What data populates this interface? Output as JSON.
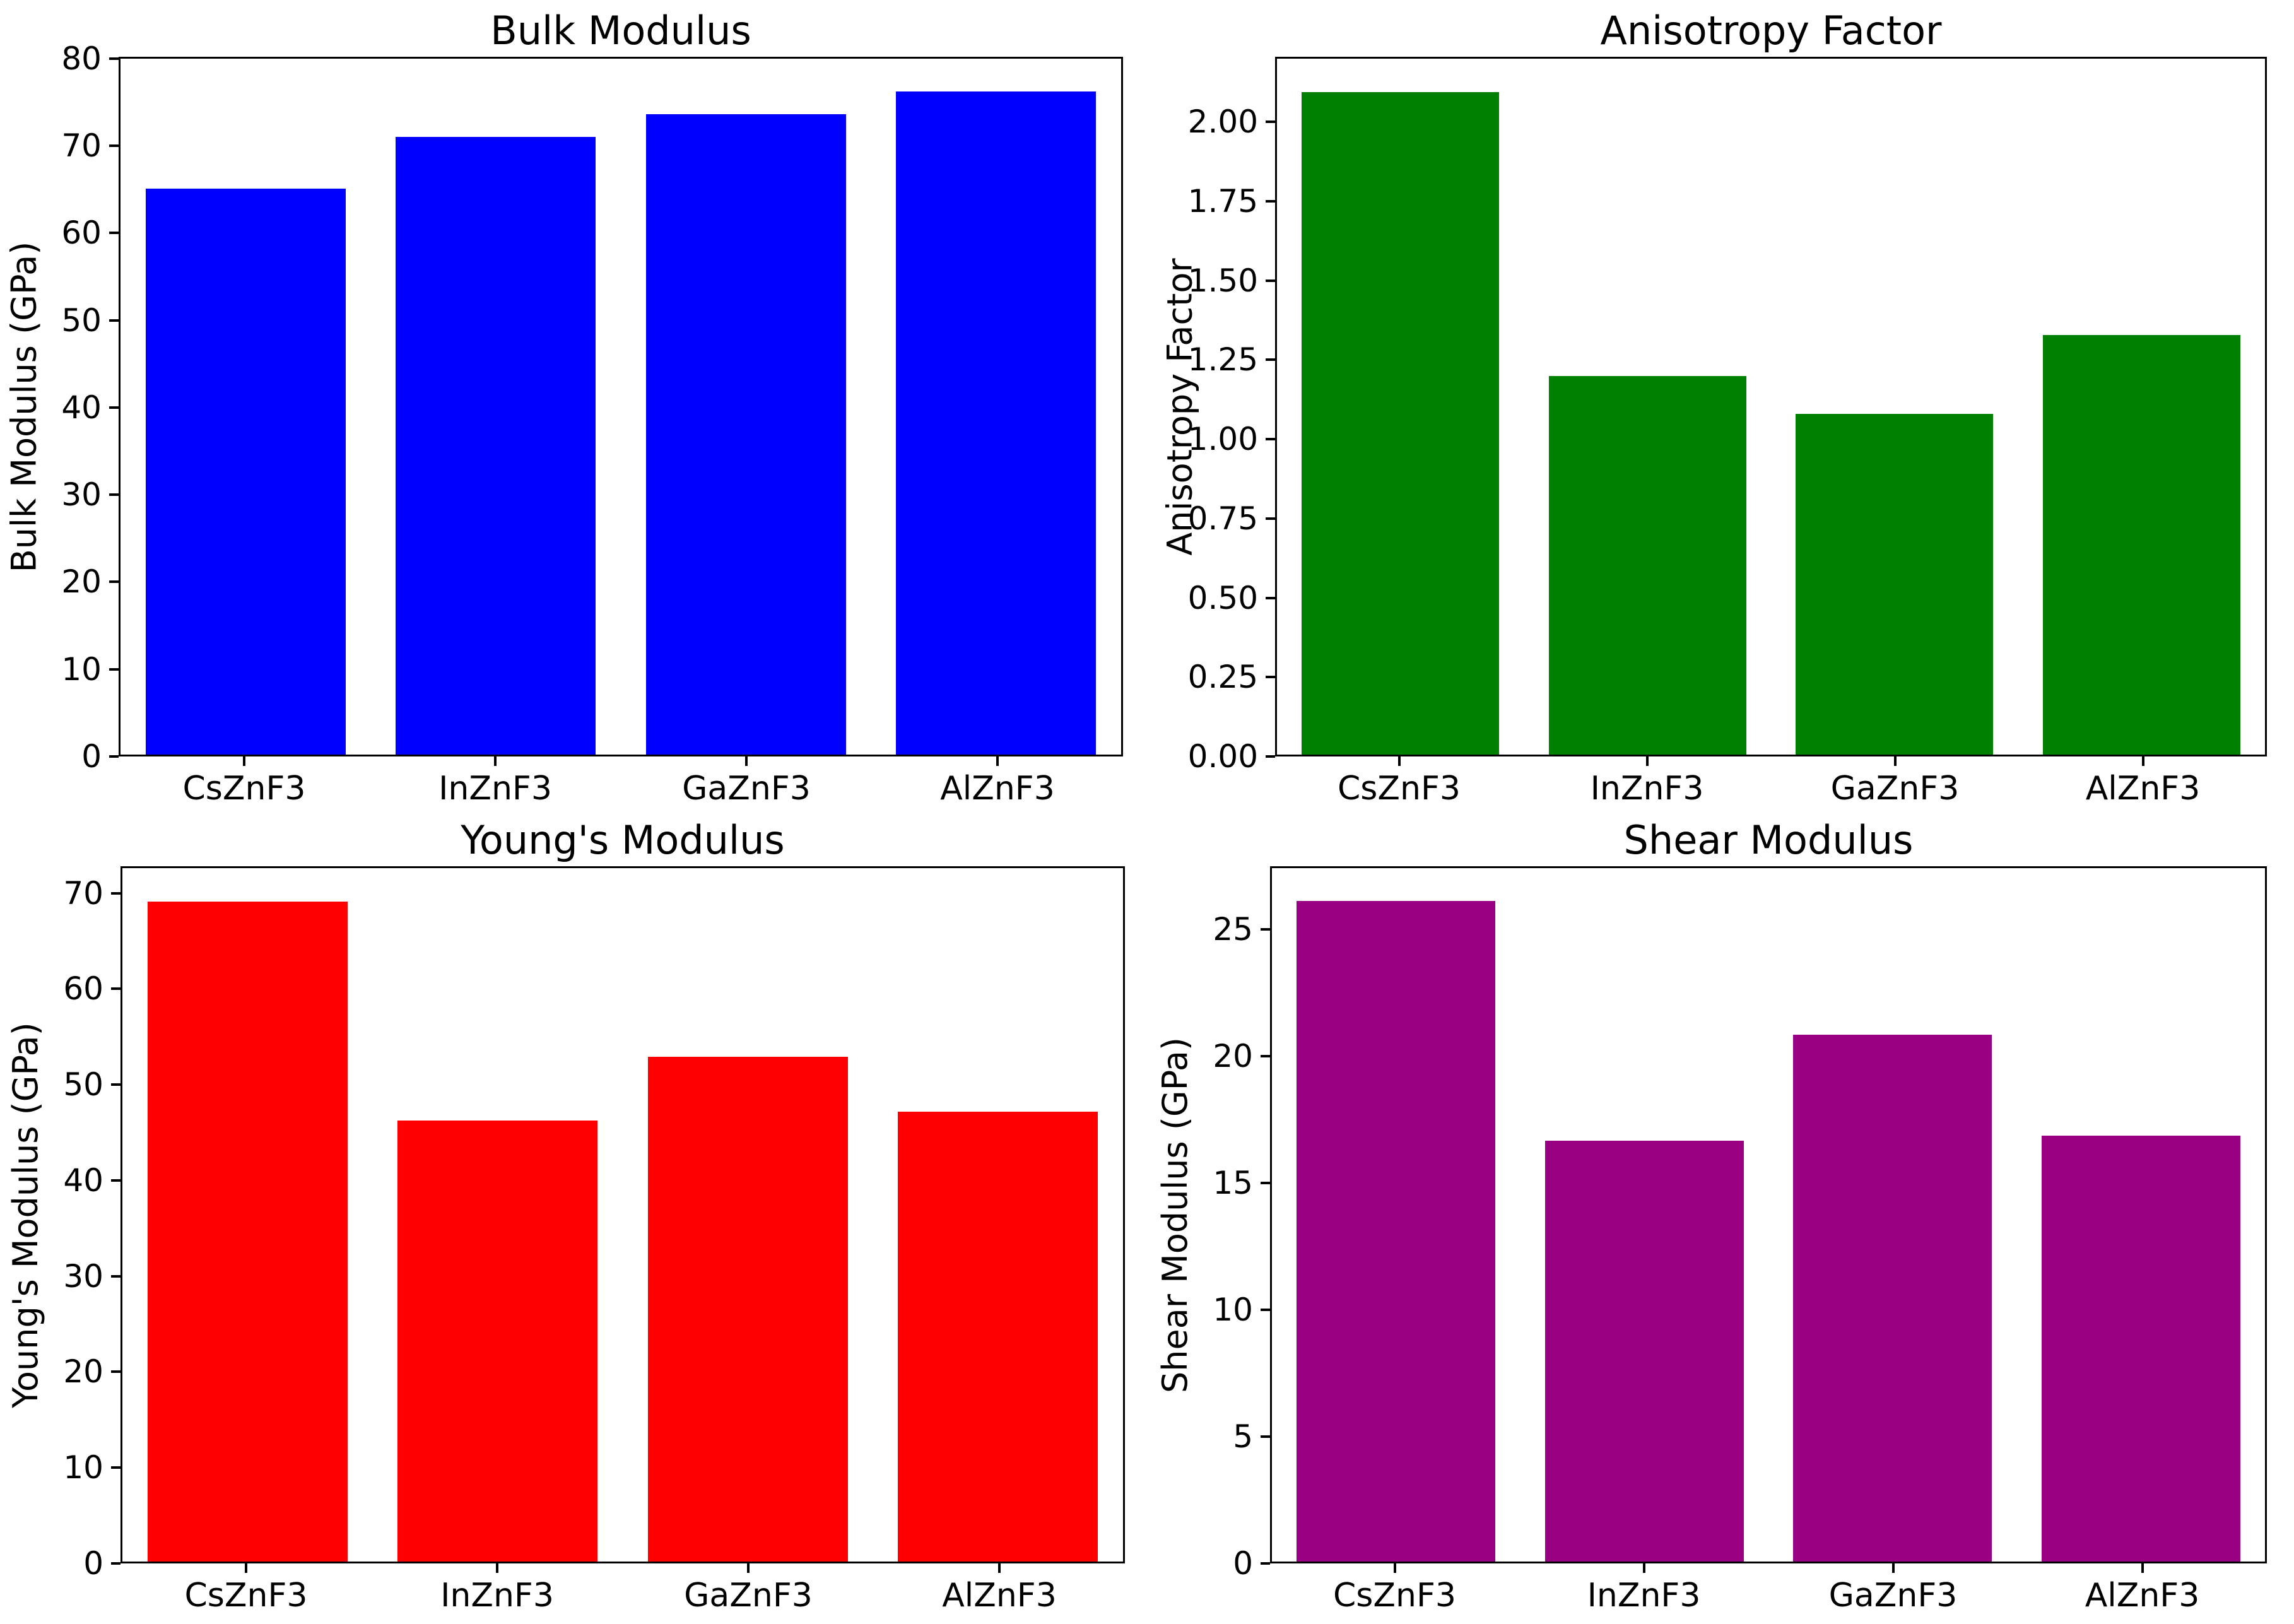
{
  "figure": {
    "background": "#ffffff",
    "text_color": "#000000"
  },
  "chart_data": [
    {
      "type": "bar",
      "title": "Bulk Modulus",
      "ylabel": "Bulk Modulus (GPa)",
      "xlabel": "",
      "categories": [
        "CsZnF3",
        "InZnF3",
        "GaZnF3",
        "AlZnF3"
      ],
      "values": [
        65.2,
        71.2,
        73.8,
        76.4
      ],
      "bar_color": "#0000ff",
      "ylim": [
        0,
        80.2
      ],
      "yticks": [
        0,
        10,
        20,
        30,
        40,
        50,
        60,
        70,
        80
      ],
      "ytick_labels": [
        "0",
        "10",
        "20",
        "30",
        "40",
        "50",
        "60",
        "70",
        "80"
      ],
      "grid": false,
      "legend": null
    },
    {
      "type": "bar",
      "title": "Anisotropy Factor",
      "ylabel": "Anisotropy Factor",
      "xlabel": "",
      "categories": [
        "CsZnF3",
        "InZnF3",
        "GaZnF3",
        "AlZnF3"
      ],
      "values": [
        2.1,
        1.2,
        1.08,
        1.33
      ],
      "bar_color": "#008000",
      "ylim": [
        0,
        2.205
      ],
      "yticks": [
        0,
        0.25,
        0.5,
        0.75,
        1.0,
        1.25,
        1.5,
        1.75,
        2.0
      ],
      "ytick_labels": [
        "0.00",
        "0.25",
        "0.50",
        "0.75",
        "1.00",
        "1.25",
        "1.50",
        "1.75",
        "2.00"
      ],
      "grid": false,
      "legend": null
    },
    {
      "type": "bar",
      "title": "Young's Modulus",
      "ylabel": "Young's Modulus (GPa)",
      "xlabel": "",
      "categories": [
        "CsZnF3",
        "InZnF3",
        "GaZnF3",
        "AlZnF3"
      ],
      "values": [
        69.3,
        46.3,
        53.0,
        47.2
      ],
      "bar_color": "#ff0000",
      "ylim": [
        0,
        72.8
      ],
      "yticks": [
        0,
        10,
        20,
        30,
        40,
        50,
        60,
        70
      ],
      "ytick_labels": [
        "0",
        "10",
        "20",
        "30",
        "40",
        "50",
        "60",
        "70"
      ],
      "grid": false,
      "legend": null
    },
    {
      "type": "bar",
      "title": "Shear Modulus",
      "ylabel": "Shear Modulus (GPa)",
      "xlabel": "",
      "categories": [
        "CsZnF3",
        "InZnF3",
        "GaZnF3",
        "AlZnF3"
      ],
      "values": [
        26.2,
        16.7,
        20.9,
        16.9
      ],
      "bar_color": "#990082",
      "ylim": [
        0,
        27.5
      ],
      "yticks": [
        0,
        5,
        10,
        15,
        20,
        25
      ],
      "ytick_labels": [
        "0",
        "5",
        "10",
        "15",
        "20",
        "25"
      ],
      "grid": false,
      "legend": null
    }
  ]
}
